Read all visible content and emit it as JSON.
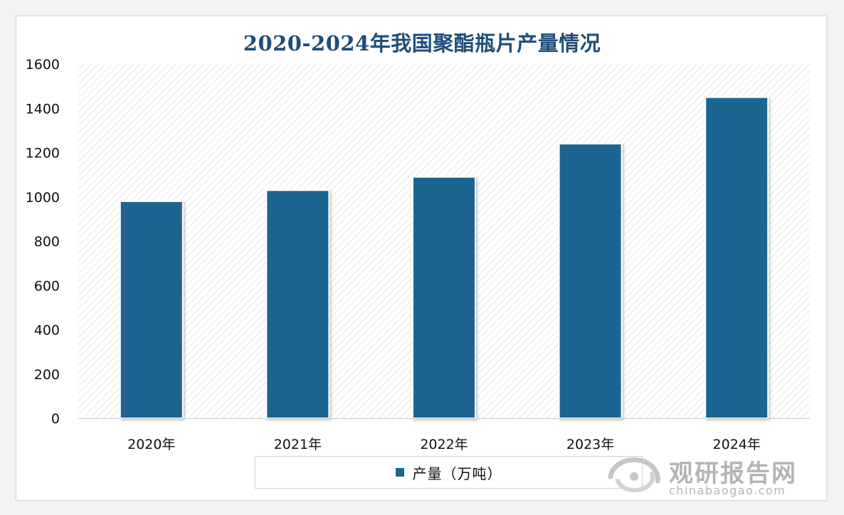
{
  "chart_data": {
    "type": "bar",
    "title": "2020-2024年我国聚酯瓶片产量情况",
    "categories": [
      "2020年",
      "2021年",
      "2022年",
      "2023年",
      "2024年"
    ],
    "series": [
      {
        "name": "产量（万吨）",
        "values": [
          980,
          1030,
          1090,
          1240,
          1450
        ]
      }
    ],
    "yticks": [
      "0",
      "200",
      "400",
      "600",
      "800",
      "1000",
      "1200",
      "1400",
      "1600"
    ],
    "ylim": [
      0,
      1600
    ],
    "grid": false,
    "legend_position": "bottom",
    "colors": {
      "bar": "#1a6590",
      "title": "#1f4e79"
    }
  },
  "watermark": {
    "name": "观研报告网",
    "url": "chinabaogao.com"
  }
}
